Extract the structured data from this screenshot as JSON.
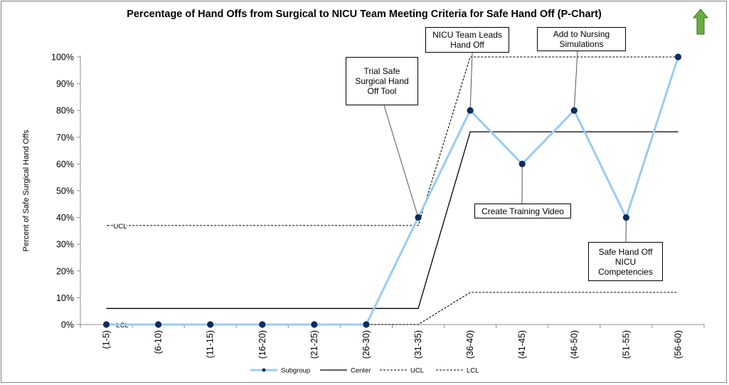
{
  "chart_data": {
    "type": "line",
    "title": "Percentage of Hand Offs from Surgical to NICU Team Meeting Criteria for Safe Hand Off (P-Chart)",
    "ylabel": "Percent of Safe Surgical Hand Offs",
    "xlabel": "",
    "ylim": [
      0,
      100
    ],
    "y_ticks": [
      "0%",
      "10%",
      "20%",
      "30%",
      "40%",
      "50%",
      "60%",
      "70%",
      "80%",
      "90%",
      "100%"
    ],
    "categories": [
      "(1-5)",
      "(6-10)",
      "(11-15)",
      "(16-20)",
      "(21-25)",
      "(26-30)",
      "(31-35)",
      "(36-40)",
      "(41-45)",
      "(46-50)",
      "(51-55)",
      "(56-60)"
    ],
    "series": [
      {
        "name": "Subgroup",
        "values": [
          0,
          0,
          0,
          0,
          0,
          0,
          40,
          80,
          60,
          80,
          40,
          100
        ],
        "color": "#99CCF3"
      },
      {
        "name": "Center",
        "values": [
          6,
          6,
          6,
          6,
          6,
          6,
          6,
          72,
          72,
          72,
          72,
          72
        ],
        "color": "#000000"
      },
      {
        "name": "UCL",
        "values": [
          37,
          37,
          37,
          37,
          37,
          37,
          37,
          100,
          100,
          100,
          100,
          100
        ],
        "color": "#000000"
      },
      {
        "name": "LCL",
        "values": [
          0,
          0,
          0,
          0,
          0,
          0,
          0,
          12,
          12,
          12,
          12,
          12
        ],
        "color": "#000000"
      }
    ],
    "inline_labels": {
      "ucl": "UCL",
      "lcl": "LCL"
    },
    "annotations": [
      {
        "text": "Trial Safe\nSurgical Hand\nOff Tool",
        "target_index": 6
      },
      {
        "text": "NICU Team Leads\nHand Off",
        "target_index": 7
      },
      {
        "text": "Add to Nursing\nSimulations",
        "target_index": 9
      },
      {
        "text": "Create Training Video",
        "target_index": 8
      },
      {
        "text": "Safe Hand Off\nNICU\nCompetencies",
        "target_index": 10
      }
    ],
    "legend": {
      "position": "bottom",
      "entries": [
        "Subgroup",
        "Center",
        "UCL",
        "LCL"
      ]
    },
    "grid": false,
    "trend_arrow": {
      "direction": "up",
      "color": "#6AAF3D"
    },
    "marker_color": "#0D2D5E"
  }
}
